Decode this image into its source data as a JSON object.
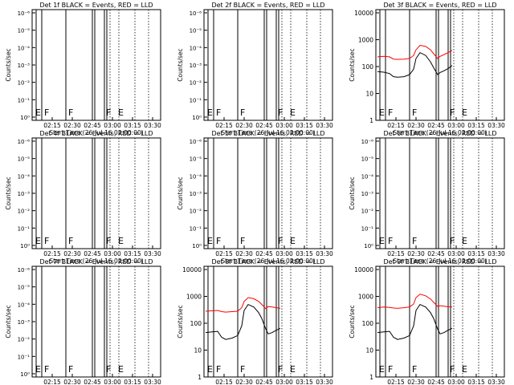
{
  "chart_data": [
    {
      "type": "line",
      "title": "Det 1f BLACK = Events, RED = LLD",
      "xlabel": "Start Time (26-Jul-16 02:00:00)",
      "ylabel": "Counts/sec",
      "scale": "empty",
      "has_data": false,
      "flags": [
        "E",
        "F",
        "F",
        "F",
        "E"
      ]
    },
    {
      "type": "line",
      "title": "Det 2f BLACK = Events, RED = LLD",
      "xlabel": "Start Time (26-Jul-16 02:00:00)",
      "ylabel": "Counts/sec",
      "scale": "empty",
      "has_data": false,
      "flags": [
        "E",
        "F",
        "F",
        "F",
        "E"
      ]
    },
    {
      "type": "line",
      "title": "Det 3f BLACK = Events, RED = LLD",
      "xlabel": "Start Time (26-Jul-16 02:00:00)",
      "ylabel": "Counts/sec",
      "scale": "log",
      "ylim": [
        1,
        10000
      ],
      "has_data": true,
      "flags": [
        "E",
        "F",
        "F",
        "F",
        "E"
      ],
      "series": [
        {
          "color": "#ff0000",
          "x": [
            2.02,
            2.1,
            2.17,
            2.22,
            2.27,
            2.35,
            2.42,
            2.47,
            2.5,
            2.55,
            2.62,
            2.68,
            2.72,
            2.77,
            2.8,
            2.85,
            2.9,
            2.95
          ],
          "y": [
            230,
            240,
            230,
            190,
            185,
            190,
            200,
            260,
            420,
            620,
            560,
            420,
            300,
            200,
            240,
            280,
            330,
            400
          ]
        },
        {
          "color": "#000000",
          "x": [
            2.02,
            2.1,
            2.17,
            2.22,
            2.27,
            2.35,
            2.42,
            2.47,
            2.5,
            2.55,
            2.62,
            2.68,
            2.72,
            2.77,
            2.8,
            2.85,
            2.9,
            2.95
          ],
          "y": [
            65,
            62,
            55,
            42,
            40,
            42,
            50,
            80,
            200,
            330,
            260,
            150,
            90,
            50,
            60,
            70,
            85,
            110
          ]
        }
      ]
    },
    {
      "type": "line",
      "title": "Det 4f BLACK = Events, RED = LLD",
      "xlabel": "Start Time (26-Jul-16 02:00:00)",
      "ylabel": "Counts/sec",
      "scale": "empty",
      "has_data": false,
      "flags": [
        "E",
        "F",
        "F",
        "F",
        "E"
      ]
    },
    {
      "type": "line",
      "title": "Det 5f BLACK = Events, RED = LLD",
      "xlabel": "Start Time (26-Jul-16 02:00:00)",
      "ylabel": "Counts/sec",
      "scale": "empty",
      "has_data": false,
      "flags": [
        "E",
        "F",
        "F",
        "F",
        "E"
      ]
    },
    {
      "type": "line",
      "title": "Det 6f BLACK = Events, RED = LLD",
      "xlabel": "Start Time (26-Jul-16 02:00:00)",
      "ylabel": "Counts/sec",
      "scale": "empty",
      "has_data": false,
      "flags": [
        "E",
        "F",
        "F",
        "F",
        "E"
      ]
    },
    {
      "type": "line",
      "title": "Det 7f BLACK = Events, RED = LLD",
      "xlabel": "Start Time (26-Jul-16 02:00:00)",
      "ylabel": "Counts/sec",
      "scale": "empty",
      "has_data": false,
      "flags": [
        "E",
        "F",
        "F",
        "F",
        "E"
      ]
    },
    {
      "type": "line",
      "title": "Det 8f BLACK = Events, RED = LLD",
      "xlabel": "Start Time (26-Jul-16 02:00:00)",
      "ylabel": "Counts/sec",
      "scale": "log",
      "ylim": [
        1,
        10000
      ],
      "has_data": true,
      "flags": [
        "E",
        "F",
        "F",
        "F",
        "E"
      ],
      "series": [
        {
          "color": "#ff0000",
          "x": [
            2.02,
            2.1,
            2.17,
            2.22,
            2.27,
            2.35,
            2.42,
            2.47,
            2.5,
            2.55,
            2.62,
            2.68,
            2.72,
            2.77,
            2.8,
            2.85,
            2.9,
            2.95
          ],
          "y": [
            280,
            290,
            300,
            270,
            260,
            270,
            280,
            380,
            650,
            900,
            820,
            650,
            500,
            350,
            420,
            400,
            380,
            360
          ]
        },
        {
          "color": "#000000",
          "x": [
            2.02,
            2.1,
            2.17,
            2.22,
            2.27,
            2.35,
            2.42,
            2.47,
            2.5,
            2.55,
            2.62,
            2.68,
            2.72,
            2.77,
            2.8,
            2.85,
            2.9,
            2.95
          ],
          "y": [
            45,
            48,
            50,
            30,
            25,
            28,
            35,
            80,
            300,
            500,
            400,
            250,
            150,
            60,
            40,
            45,
            55,
            65
          ]
        }
      ]
    },
    {
      "type": "line",
      "title": "Det 9f BLACK = Events, RED = LLD",
      "xlabel": "Start Time (26-Jul-16 02:00:00)",
      "ylabel": "Counts/sec",
      "scale": "log",
      "ylim": [
        1,
        10000
      ],
      "has_data": true,
      "flags": [
        "E",
        "F",
        "F",
        "F",
        "E"
      ],
      "series": [
        {
          "color": "#ff0000",
          "x": [
            2.02,
            2.1,
            2.17,
            2.22,
            2.27,
            2.35,
            2.42,
            2.47,
            2.5,
            2.55,
            2.62,
            2.68,
            2.72,
            2.77,
            2.8,
            2.85,
            2.9,
            2.95
          ],
          "y": [
            380,
            400,
            390,
            370,
            360,
            380,
            400,
            520,
            900,
            1200,
            1050,
            800,
            600,
            420,
            450,
            430,
            410,
            400
          ]
        },
        {
          "color": "#000000",
          "x": [
            2.02,
            2.1,
            2.17,
            2.22,
            2.27,
            2.35,
            2.42,
            2.47,
            2.5,
            2.55,
            2.62,
            2.68,
            2.72,
            2.77,
            2.8,
            2.85,
            2.9,
            2.95
          ],
          "y": [
            45,
            48,
            50,
            30,
            25,
            28,
            35,
            80,
            300,
            500,
            400,
            250,
            150,
            60,
            40,
            45,
            55,
            65
          ]
        }
      ]
    }
  ],
  "axes": {
    "x_ticks": [
      "02:15",
      "02:30",
      "02:45",
      "03:00",
      "03:15",
      "03:30"
    ],
    "x_tick_values": [
      2.25,
      2.5,
      2.75,
      3.0,
      3.25,
      3.5
    ],
    "xlim": [
      2.0,
      3.6
    ],
    "empty_y_ticks": [
      "10⁰",
      "10⁻¹",
      "10⁻²",
      "10⁻³",
      "10⁻⁴",
      "10⁻⁵",
      "10⁻⁶"
    ],
    "log_y_ticks": [
      "1",
      "10",
      "100",
      "1000",
      "10000"
    ],
    "solid_vlines": [
      2.05,
      2.12,
      2.42,
      2.75,
      2.78,
      2.9,
      2.93
    ],
    "dotted_vlines": [
      2.97,
      3.08,
      3.28,
      3.45
    ],
    "flag_x": [
      2.02,
      2.13,
      2.43,
      2.9,
      3.05
    ]
  },
  "colors": {
    "events": "#000000",
    "lld": "#ff0000",
    "axis": "#000000"
  }
}
